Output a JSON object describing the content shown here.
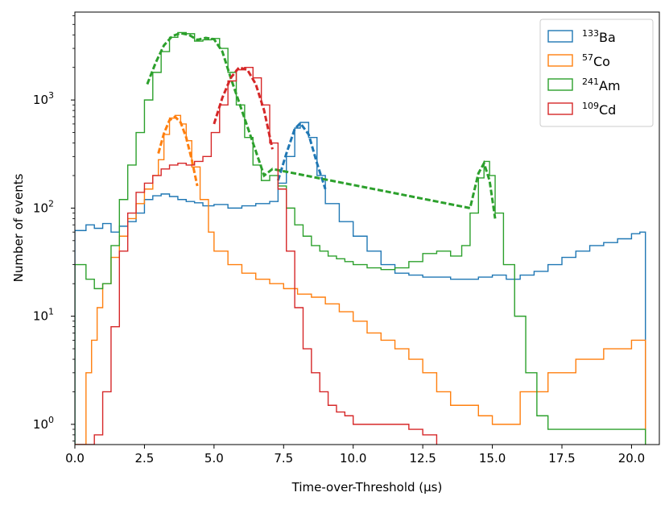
{
  "chart_data": {
    "type": "histogram",
    "xlabel": "Time-over-Threshold (μs)",
    "ylabel": "Number of events",
    "xlim": [
      0,
      21
    ],
    "ylim": [
      0.65,
      6500
    ],
    "yscale": "log",
    "grid": false,
    "legend_position": "top-right",
    "x_ticks": [
      0.0,
      2.5,
      5.0,
      7.5,
      10.0,
      12.5,
      15.0,
      17.5,
      20.0
    ],
    "x_tick_labels": [
      "0.0",
      "2.5",
      "5.0",
      "7.5",
      "10.0",
      "12.5",
      "15.0",
      "17.5",
      "20.0"
    ],
    "y_ticks": [
      {
        "value": 1,
        "base": "10",
        "exp": "0"
      },
      {
        "value": 10,
        "base": "10",
        "exp": "1"
      },
      {
        "value": 100,
        "base": "10",
        "exp": "2"
      },
      {
        "value": 1000,
        "base": "10",
        "exp": "3"
      }
    ],
    "series": [
      {
        "name": "Ba",
        "isotope_mass": "133",
        "color": "#1f77b4",
        "hist": [
          [
            0,
            62
          ],
          [
            0.4,
            70
          ],
          [
            0.7,
            65
          ],
          [
            1.0,
            72
          ],
          [
            1.3,
            60
          ],
          [
            1.6,
            68
          ],
          [
            1.9,
            75
          ],
          [
            2.2,
            90
          ],
          [
            2.5,
            120
          ],
          [
            2.8,
            130
          ],
          [
            3.1,
            135
          ],
          [
            3.4,
            128
          ],
          [
            3.7,
            120
          ],
          [
            4.0,
            115
          ],
          [
            4.3,
            112
          ],
          [
            4.6,
            105
          ],
          [
            5.0,
            108
          ],
          [
            5.5,
            100
          ],
          [
            6.0,
            105
          ],
          [
            6.5,
            110
          ],
          [
            7.0,
            115
          ],
          [
            7.3,
            170
          ],
          [
            7.6,
            300
          ],
          [
            7.9,
            550
          ],
          [
            8.1,
            620
          ],
          [
            8.4,
            450
          ],
          [
            8.7,
            200
          ],
          [
            9.0,
            110
          ],
          [
            9.5,
            75
          ],
          [
            10.0,
            55
          ],
          [
            10.5,
            40
          ],
          [
            11.0,
            30
          ],
          [
            11.5,
            25
          ],
          [
            12.0,
            24
          ],
          [
            12.5,
            23
          ],
          [
            13.0,
            23
          ],
          [
            13.5,
            22
          ],
          [
            14.0,
            22
          ],
          [
            14.5,
            23
          ],
          [
            15.0,
            24
          ],
          [
            15.5,
            22
          ],
          [
            16.0,
            24
          ],
          [
            16.5,
            26
          ],
          [
            17.0,
            30
          ],
          [
            17.5,
            35
          ],
          [
            18.0,
            40
          ],
          [
            18.5,
            45
          ],
          [
            19.0,
            48
          ],
          [
            19.5,
            52
          ],
          [
            20.0,
            58
          ],
          [
            20.3,
            60
          ],
          [
            20.5,
            0.65
          ]
        ],
        "fit": [
          [
            7.3,
            180
          ],
          [
            7.6,
            320
          ],
          [
            7.9,
            540
          ],
          [
            8.1,
            610
          ],
          [
            8.4,
            480
          ],
          [
            8.7,
            260
          ],
          [
            9.0,
            150
          ]
        ]
      },
      {
        "name": "Co",
        "isotope_mass": "57",
        "color": "#ff7f0e",
        "hist": [
          [
            0,
            0.65
          ],
          [
            0.4,
            3
          ],
          [
            0.6,
            6
          ],
          [
            0.8,
            12
          ],
          [
            1.0,
            20
          ],
          [
            1.3,
            35
          ],
          [
            1.6,
            55
          ],
          [
            1.9,
            80
          ],
          [
            2.2,
            110
          ],
          [
            2.5,
            150
          ],
          [
            2.8,
            200
          ],
          [
            3.0,
            280
          ],
          [
            3.2,
            480
          ],
          [
            3.4,
            680
          ],
          [
            3.6,
            720
          ],
          [
            3.8,
            600
          ],
          [
            4.0,
            420
          ],
          [
            4.2,
            240
          ],
          [
            4.5,
            120
          ],
          [
            4.8,
            60
          ],
          [
            5.0,
            40
          ],
          [
            5.5,
            30
          ],
          [
            6.0,
            25
          ],
          [
            6.5,
            22
          ],
          [
            7.0,
            20
          ],
          [
            7.5,
            18
          ],
          [
            8.0,
            16
          ],
          [
            8.5,
            15
          ],
          [
            9.0,
            13
          ],
          [
            9.5,
            11
          ],
          [
            10.0,
            9
          ],
          [
            10.5,
            7
          ],
          [
            11.0,
            6
          ],
          [
            11.5,
            5
          ],
          [
            12.0,
            4
          ],
          [
            12.5,
            3
          ],
          [
            13.0,
            2
          ],
          [
            13.5,
            1.5
          ],
          [
            14.0,
            1.5
          ],
          [
            14.5,
            1.2
          ],
          [
            15.0,
            1
          ],
          [
            16.0,
            2
          ],
          [
            17.0,
            3
          ],
          [
            18.0,
            4
          ],
          [
            19.0,
            5
          ],
          [
            20.0,
            6
          ],
          [
            20.5,
            0.65
          ]
        ],
        "fit": [
          [
            3.0,
            320
          ],
          [
            3.2,
            490
          ],
          [
            3.4,
            650
          ],
          [
            3.6,
            700
          ],
          [
            3.8,
            620
          ],
          [
            4.0,
            450
          ],
          [
            4.2,
            280
          ],
          [
            4.4,
            160
          ]
        ]
      },
      {
        "name": "Am",
        "isotope_mass": "241",
        "color": "#2ca02c",
        "hist": [
          [
            0,
            30
          ],
          [
            0.4,
            22
          ],
          [
            0.7,
            18
          ],
          [
            1.0,
            20
          ],
          [
            1.3,
            45
          ],
          [
            1.6,
            120
          ],
          [
            1.9,
            250
          ],
          [
            2.2,
            500
          ],
          [
            2.5,
            1000
          ],
          [
            2.8,
            1800
          ],
          [
            3.1,
            2800
          ],
          [
            3.4,
            3800
          ],
          [
            3.7,
            4200
          ],
          [
            4.0,
            4100
          ],
          [
            4.3,
            3500
          ],
          [
            4.6,
            3600
          ],
          [
            4.9,
            3700
          ],
          [
            5.2,
            3000
          ],
          [
            5.5,
            1800
          ],
          [
            5.8,
            900
          ],
          [
            6.1,
            450
          ],
          [
            6.4,
            250
          ],
          [
            6.7,
            180
          ],
          [
            7.0,
            200
          ],
          [
            7.3,
            160
          ],
          [
            7.6,
            100
          ],
          [
            7.9,
            70
          ],
          [
            8.2,
            55
          ],
          [
            8.5,
            45
          ],
          [
            8.8,
            40
          ],
          [
            9.1,
            36
          ],
          [
            9.4,
            34
          ],
          [
            9.7,
            32
          ],
          [
            10.0,
            30
          ],
          [
            10.5,
            28
          ],
          [
            11.0,
            27
          ],
          [
            11.5,
            28
          ],
          [
            12.0,
            32
          ],
          [
            12.5,
            38
          ],
          [
            13.0,
            40
          ],
          [
            13.5,
            36
          ],
          [
            13.9,
            45
          ],
          [
            14.2,
            90
          ],
          [
            14.5,
            190
          ],
          [
            14.7,
            270
          ],
          [
            14.9,
            200
          ],
          [
            15.1,
            90
          ],
          [
            15.4,
            30
          ],
          [
            15.8,
            10
          ],
          [
            16.2,
            3
          ],
          [
            16.6,
            1.2
          ],
          [
            17.0,
            0.9
          ],
          [
            18.0,
            0.9
          ],
          [
            19.0,
            0.9
          ],
          [
            20.0,
            0.9
          ],
          [
            20.5,
            0.65
          ]
        ],
        "fit": [
          [
            2.6,
            1400
          ],
          [
            2.9,
            2200
          ],
          [
            3.2,
            3200
          ],
          [
            3.5,
            3900
          ],
          [
            3.8,
            4150
          ],
          [
            4.1,
            4000
          ],
          [
            4.4,
            3600
          ],
          [
            4.7,
            3750
          ],
          [
            5.0,
            3650
          ],
          [
            5.3,
            2800
          ],
          [
            5.6,
            1600
          ],
          [
            6.8,
            200
          ],
          [
            7.1,
            230
          ],
          [
            14.2,
            100
          ],
          [
            14.5,
            210
          ],
          [
            14.7,
            260
          ],
          [
            14.9,
            180
          ],
          [
            15.1,
            80
          ]
        ]
      },
      {
        "name": "Cd",
        "isotope_mass": "109",
        "color": "#d62728",
        "hist": [
          [
            0,
            0.65
          ],
          [
            0.4,
            0.65
          ],
          [
            0.7,
            0.8
          ],
          [
            1.0,
            2
          ],
          [
            1.3,
            8
          ],
          [
            1.6,
            40
          ],
          [
            1.9,
            90
          ],
          [
            2.2,
            140
          ],
          [
            2.5,
            170
          ],
          [
            2.8,
            200
          ],
          [
            3.1,
            230
          ],
          [
            3.4,
            250
          ],
          [
            3.7,
            260
          ],
          [
            4.0,
            250
          ],
          [
            4.3,
            270
          ],
          [
            4.6,
            300
          ],
          [
            4.9,
            500
          ],
          [
            5.2,
            900
          ],
          [
            5.5,
            1500
          ],
          [
            5.8,
            1900
          ],
          [
            6.1,
            2000
          ],
          [
            6.4,
            1600
          ],
          [
            6.7,
            900
          ],
          [
            7.0,
            400
          ],
          [
            7.3,
            150
          ],
          [
            7.6,
            40
          ],
          [
            7.9,
            12
          ],
          [
            8.2,
            5
          ],
          [
            8.5,
            3
          ],
          [
            8.8,
            2
          ],
          [
            9.1,
            1.5
          ],
          [
            9.4,
            1.3
          ],
          [
            9.7,
            1.2
          ],
          [
            10.0,
            1
          ],
          [
            10.5,
            1
          ],
          [
            11.0,
            1
          ],
          [
            11.5,
            1
          ],
          [
            12.0,
            0.9
          ],
          [
            12.5,
            0.8
          ],
          [
            13.0,
            0.65
          ]
        ],
        "fit": [
          [
            5.0,
            600
          ],
          [
            5.3,
            1050
          ],
          [
            5.6,
            1600
          ],
          [
            5.9,
            2000
          ],
          [
            6.2,
            1900
          ],
          [
            6.5,
            1400
          ],
          [
            6.8,
            800
          ],
          [
            7.1,
            350
          ]
        ]
      }
    ]
  }
}
